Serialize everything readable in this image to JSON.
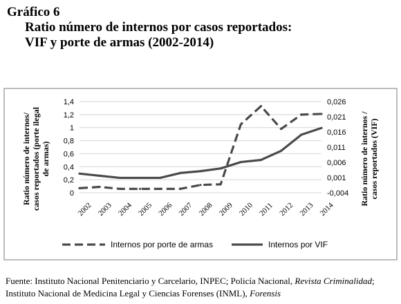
{
  "header": {
    "figure_number": "Gráfico 6",
    "title_line1": "Ratio número de internos por casos reportados:",
    "title_line2": "VIF y porte de armas (2002-2014)"
  },
  "chart_data": {
    "type": "line",
    "categories": [
      "2002",
      "2003",
      "2004",
      "2005",
      "2006",
      "2007",
      "2008",
      "2009",
      "2010",
      "2011",
      "2012",
      "2013",
      "2014"
    ],
    "y_left": {
      "label_lines": [
        "Ratio número de internos/",
        "casos reportados (porte ilegal",
        "de armas)"
      ],
      "ticks": [
        "0",
        "0,2",
        "0,4",
        "0,6",
        "0,8",
        "1",
        "1,2",
        "1,4"
      ],
      "range": [
        0,
        1.4
      ]
    },
    "y_right": {
      "label_lines": [
        "Ratio número de internos /",
        "casos reportados (VIF)"
      ],
      "ticks": [
        "-0,004",
        "0,001",
        "0,006",
        "0,011",
        "0,016",
        "0,021",
        "0,026"
      ],
      "range": [
        -0.004,
        0.026
      ]
    },
    "series": [
      {
        "name": "Internos por porte de armas",
        "axis": "left",
        "style": "dashed",
        "values": [
          0.07,
          0.09,
          0.06,
          0.06,
          0.06,
          0.06,
          0.12,
          0.13,
          1.05,
          1.33,
          0.98,
          1.2,
          1.21
        ]
      },
      {
        "name": "Internos por VIF",
        "axis": "right",
        "style": "solid",
        "values": [
          0.0023,
          0.0016,
          0.0009,
          0.0009,
          0.0009,
          0.0025,
          0.0031,
          0.004,
          0.0061,
          0.0068,
          0.0098,
          0.0151,
          0.0173
        ]
      }
    ],
    "grid": "horizontal",
    "legend_position": "bottom"
  },
  "source": {
    "prefix": "Fuente: Instituto Nacional Penitenciario y Carcelario, INPEC; Policía Nacional, ",
    "journal": "Revista Criminalidad",
    "middle": "; Instituto Nacional de Medicina Legal y Ciencias Forenses (INML), ",
    "last": "Forensis"
  },
  "colors": {
    "line": "#4a4a4a",
    "grid": "#d4d4d4",
    "frame": "#7a7a7a",
    "text": "#000000"
  }
}
